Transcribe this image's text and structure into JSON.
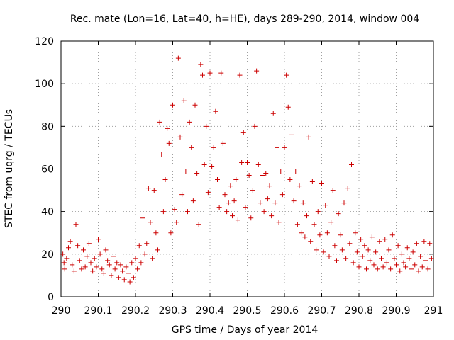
{
  "chart_data": {
    "type": "scatter",
    "title": "Rec. mate (Lon=16, Lat=40, h=HE), days 289-290, 2014, window 004",
    "xlabel": "GPS time / Days of year 2014",
    "ylabel": "STEC from uqrg / TECUs",
    "xlim": [
      290,
      291
    ],
    "ylim": [
      0,
      120
    ],
    "xticks": [
      290,
      290.1,
      290.2,
      290.3,
      290.4,
      290.5,
      290.6,
      290.7,
      290.8,
      290.9,
      291
    ],
    "xtick_labels": [
      "290",
      "290.1",
      "290.2",
      "290.3",
      "290.4",
      "290.5",
      "290.6",
      "290.7",
      "290.8",
      "290.9",
      "291"
    ],
    "yticks": [
      0,
      20,
      40,
      60,
      80,
      100,
      120
    ],
    "ytick_labels": [
      "0",
      "20",
      "40",
      "60",
      "80",
      "100",
      "120"
    ],
    "grid": true,
    "marker": "+",
    "color": "#cc0000",
    "series": [
      {
        "points": [
          [
            290.005,
            20
          ],
          [
            290.008,
            16
          ],
          [
            290.01,
            13
          ],
          [
            290.015,
            18
          ],
          [
            290.02,
            23
          ],
          [
            290.025,
            26
          ],
          [
            290.03,
            15
          ],
          [
            290.035,
            12
          ],
          [
            290.04,
            34
          ],
          [
            290.045,
            24
          ],
          [
            290.05,
            17
          ],
          [
            290.055,
            13
          ],
          [
            290.06,
            22
          ],
          [
            290.065,
            14
          ],
          [
            290.07,
            19
          ],
          [
            290.075,
            25
          ],
          [
            290.08,
            16
          ],
          [
            290.085,
            12
          ],
          [
            290.09,
            18
          ],
          [
            290.095,
            14
          ],
          [
            290.1,
            27
          ],
          [
            290.105,
            20
          ],
          [
            290.11,
            13
          ],
          [
            290.115,
            11
          ],
          [
            290.12,
            22
          ],
          [
            290.125,
            17
          ],
          [
            290.13,
            15
          ],
          [
            290.135,
            10
          ],
          [
            290.14,
            19
          ],
          [
            290.145,
            13
          ],
          [
            290.15,
            16
          ],
          [
            290.155,
            9
          ],
          [
            290.16,
            15
          ],
          [
            290.165,
            12
          ],
          [
            290.17,
            8
          ],
          [
            290.175,
            14
          ],
          [
            290.18,
            11
          ],
          [
            290.185,
            7
          ],
          [
            290.19,
            16
          ],
          [
            290.195,
            9
          ],
          [
            290.2,
            18
          ],
          [
            290.205,
            13
          ],
          [
            290.21,
            24
          ],
          [
            290.215,
            16
          ],
          [
            290.22,
            37
          ],
          [
            290.225,
            20
          ],
          [
            290.23,
            25
          ],
          [
            290.235,
            51
          ],
          [
            290.24,
            35
          ],
          [
            290.245,
            18
          ],
          [
            290.25,
            50
          ],
          [
            290.255,
            30
          ],
          [
            290.26,
            22
          ],
          [
            290.265,
            82
          ],
          [
            290.27,
            67
          ],
          [
            290.275,
            40
          ],
          [
            290.28,
            55
          ],
          [
            290.285,
            79
          ],
          [
            290.29,
            72
          ],
          [
            290.295,
            30
          ],
          [
            290.3,
            90
          ],
          [
            290.305,
            41
          ],
          [
            290.31,
            35
          ],
          [
            290.315,
            112
          ],
          [
            290.32,
            75
          ],
          [
            290.325,
            48
          ],
          [
            290.33,
            92
          ],
          [
            290.335,
            59
          ],
          [
            290.34,
            40
          ],
          [
            290.345,
            82
          ],
          [
            290.35,
            70
          ],
          [
            290.355,
            45
          ],
          [
            290.36,
            90
          ],
          [
            290.365,
            58
          ],
          [
            290.37,
            34
          ],
          [
            290.375,
            109
          ],
          [
            290.38,
            104
          ],
          [
            290.385,
            62
          ],
          [
            290.39,
            80
          ],
          [
            290.395,
            49
          ],
          [
            290.4,
            105
          ],
          [
            290.405,
            61
          ],
          [
            290.41,
            70
          ],
          [
            290.415,
            87
          ],
          [
            290.42,
            55
          ],
          [
            290.425,
            42
          ],
          [
            290.43,
            105
          ],
          [
            290.435,
            72
          ],
          [
            290.44,
            48
          ],
          [
            290.445,
            40
          ],
          [
            290.45,
            44
          ],
          [
            290.455,
            52
          ],
          [
            290.46,
            38
          ],
          [
            290.465,
            45
          ],
          [
            290.47,
            55
          ],
          [
            290.475,
            36
          ],
          [
            290.48,
            104
          ],
          [
            290.485,
            63
          ],
          [
            290.49,
            77
          ],
          [
            290.495,
            42
          ],
          [
            290.5,
            63
          ],
          [
            290.505,
            57
          ],
          [
            290.51,
            37
          ],
          [
            290.515,
            50
          ],
          [
            290.52,
            80
          ],
          [
            290.525,
            106
          ],
          [
            290.53,
            62
          ],
          [
            290.535,
            44
          ],
          [
            290.54,
            57
          ],
          [
            290.545,
            40
          ],
          [
            290.55,
            58
          ],
          [
            290.555,
            46
          ],
          [
            290.56,
            52
          ],
          [
            290.565,
            38
          ],
          [
            290.57,
            86
          ],
          [
            290.575,
            44
          ],
          [
            290.58,
            70
          ],
          [
            290.585,
            35
          ],
          [
            290.59,
            59
          ],
          [
            290.595,
            48
          ],
          [
            290.6,
            70
          ],
          [
            290.605,
            104
          ],
          [
            290.61,
            89
          ],
          [
            290.615,
            55
          ],
          [
            290.62,
            76
          ],
          [
            290.625,
            45
          ],
          [
            290.63,
            59
          ],
          [
            290.635,
            34
          ],
          [
            290.64,
            52
          ],
          [
            290.645,
            30
          ],
          [
            290.65,
            44
          ],
          [
            290.655,
            28
          ],
          [
            290.66,
            38
          ],
          [
            290.665,
            75
          ],
          [
            290.67,
            26
          ],
          [
            290.675,
            54
          ],
          [
            290.68,
            34
          ],
          [
            290.685,
            22
          ],
          [
            290.69,
            40
          ],
          [
            290.695,
            29
          ],
          [
            290.7,
            53
          ],
          [
            290.705,
            21
          ],
          [
            290.71,
            43
          ],
          [
            290.715,
            30
          ],
          [
            290.72,
            19
          ],
          [
            290.725,
            35
          ],
          [
            290.73,
            50
          ],
          [
            290.735,
            24
          ],
          [
            290.74,
            17
          ],
          [
            290.745,
            39
          ],
          [
            290.75,
            29
          ],
          [
            290.755,
            22
          ],
          [
            290.76,
            44
          ],
          [
            290.765,
            18
          ],
          [
            290.77,
            51
          ],
          [
            290.775,
            25
          ],
          [
            290.78,
            62
          ],
          [
            290.785,
            16
          ],
          [
            290.79,
            30
          ],
          [
            290.795,
            21
          ],
          [
            290.8,
            14
          ],
          [
            290.805,
            27
          ],
          [
            290.81,
            19
          ],
          [
            290.815,
            24
          ],
          [
            290.82,
            13
          ],
          [
            290.825,
            22
          ],
          [
            290.83,
            17
          ],
          [
            290.835,
            28
          ],
          [
            290.84,
            15
          ],
          [
            290.845,
            21
          ],
          [
            290.85,
            13
          ],
          [
            290.855,
            26
          ],
          [
            290.86,
            18
          ],
          [
            290.865,
            14
          ],
          [
            290.87,
            27
          ],
          [
            290.875,
            16
          ],
          [
            290.88,
            22
          ],
          [
            290.885,
            13
          ],
          [
            290.89,
            29
          ],
          [
            290.895,
            18
          ],
          [
            290.9,
            15
          ],
          [
            290.905,
            24
          ],
          [
            290.91,
            12
          ],
          [
            290.915,
            20
          ],
          [
            290.92,
            16
          ],
          [
            290.925,
            14
          ],
          [
            290.93,
            23
          ],
          [
            290.935,
            18
          ],
          [
            290.94,
            13
          ],
          [
            290.945,
            21
          ],
          [
            290.95,
            15
          ],
          [
            290.955,
            25
          ],
          [
            290.96,
            12
          ],
          [
            290.965,
            19
          ],
          [
            290.97,
            14
          ],
          [
            290.975,
            26
          ],
          [
            290.98,
            17
          ],
          [
            290.985,
            13
          ],
          [
            290.99,
            25
          ],
          [
            290.995,
            18
          ]
        ]
      }
    ]
  }
}
